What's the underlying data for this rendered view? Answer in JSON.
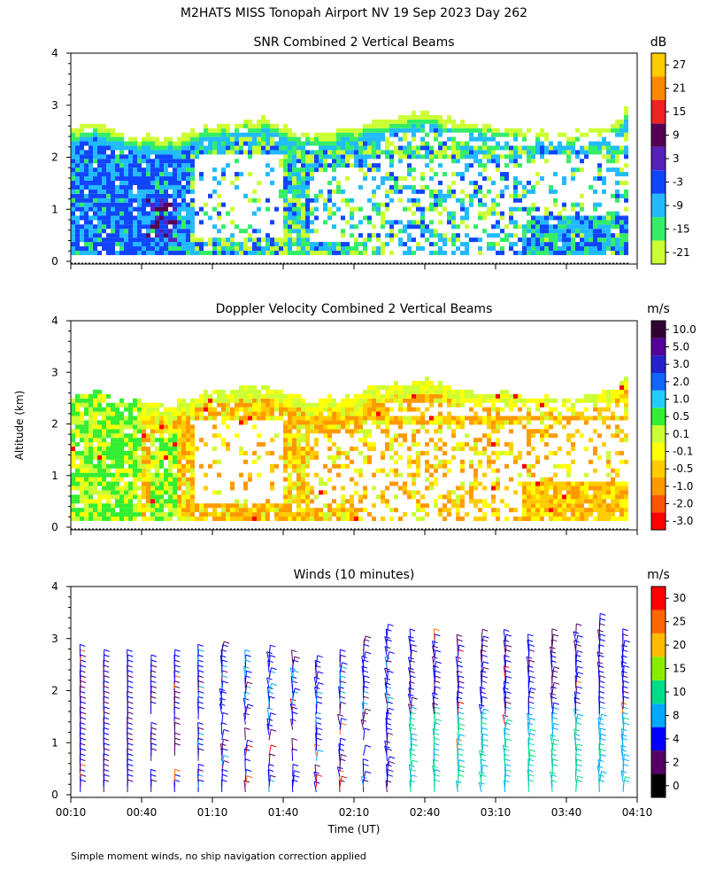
{
  "title": "M2HATS MISS Tonopah Airport NV  19 Sep 2023 Day 262",
  "ylabel": "Altitude (km)",
  "xlabel": "Time (UT)",
  "footnote": "Simple moment winds, no ship navigation correction applied",
  "x_ticks": [
    "00:10",
    "00:40",
    "01:10",
    "01:40",
    "02:10",
    "02:40",
    "03:10",
    "03:40",
    "04:10"
  ],
  "y_ticks": [
    "0",
    "1",
    "2",
    "3",
    "4"
  ],
  "colors": {
    "snr_scale": [
      "#ccff33",
      "#33ee66",
      "#22bbff",
      "#1144ff",
      "#5522bb",
      "#550055",
      "#ee2222",
      "#ff8800",
      "#ffcc00"
    ],
    "velocity_scale": [
      "#ff0000",
      "#ff5500",
      "#ff9900",
      "#ffcc00",
      "#ffff00",
      "#ccff33",
      "#33ee33",
      "#22ccff",
      "#1166ff",
      "#2222cc",
      "#550099",
      "#330033"
    ],
    "wind_scale": [
      "#000000",
      "#550066",
      "#0000ff",
      "#00aaff",
      "#00dd88",
      "#88ee00",
      "#ffbb00",
      "#ff6600",
      "#ff0000"
    ]
  },
  "chart_data": [
    {
      "type": "heatmap",
      "title": "SNR Combined 2 Vertical Beams",
      "unit": "dB",
      "ylim": [
        0,
        4
      ],
      "xlim": [
        "00:10",
        "04:10"
      ],
      "colorbar_ticks": [
        "-21",
        "-15",
        "-9",
        "-3",
        "3",
        "9",
        "15",
        "21",
        "27"
      ],
      "layer_top_km": [
        2.5,
        2.6,
        2.4,
        2.35,
        2.3,
        2.45,
        2.6,
        2.65,
        2.7,
        2.55,
        2.4,
        2.45,
        2.55,
        2.7,
        2.75,
        2.8,
        2.7,
        2.6,
        2.55,
        2.5,
        2.45,
        2.4,
        2.5,
        2.6,
        2.9
      ],
      "layer_top_times": [
        "00:10",
        "00:20",
        "00:30",
        "00:40",
        "00:50",
        "01:00",
        "01:10",
        "01:20",
        "01:30",
        "01:40",
        "01:50",
        "02:00",
        "02:10",
        "02:20",
        "02:30",
        "02:40",
        "02:50",
        "03:00",
        "03:10",
        "03:20",
        "03:30",
        "03:40",
        "03:50",
        "04:00",
        "04:05"
      ]
    },
    {
      "type": "heatmap",
      "title": "Doppler Velocity Combined 2 Vertical Beams",
      "unit": "m/s",
      "ylim": [
        0,
        4
      ],
      "xlim": [
        "00:10",
        "04:10"
      ],
      "colorbar_ticks": [
        "-3.0",
        "-2.0",
        "-1.0",
        "-0.5",
        "-0.1",
        "0.1",
        "0.5",
        "1.0",
        "2.0",
        "3.0",
        "5.0",
        "10.0"
      ]
    },
    {
      "type": "scatter",
      "title": "Winds (10 minutes)",
      "unit": "m/s",
      "ylim": [
        0,
        4
      ],
      "xlim": [
        "00:10",
        "04:10"
      ],
      "colorbar_ticks": [
        "0",
        "2",
        "4",
        "8",
        "10",
        "15",
        "20",
        "25",
        "30"
      ],
      "profile_times": [
        "00:14",
        "00:24",
        "00:34",
        "00:44",
        "00:54",
        "01:04",
        "01:14",
        "01:24",
        "01:34",
        "01:44",
        "01:54",
        "02:04",
        "02:14",
        "02:24",
        "02:34",
        "02:44",
        "02:54",
        "03:04",
        "03:14",
        "03:24",
        "03:34",
        "03:44",
        "03:54",
        "04:04"
      ],
      "profile_top_km": [
        2.7,
        2.6,
        2.6,
        2.5,
        2.6,
        2.75,
        2.8,
        2.6,
        2.7,
        2.6,
        2.5,
        2.6,
        2.9,
        3.1,
        3.0,
        3.05,
        2.9,
        3.0,
        3.0,
        2.9,
        3.0,
        3.1,
        3.3,
        3.0
      ]
    }
  ]
}
